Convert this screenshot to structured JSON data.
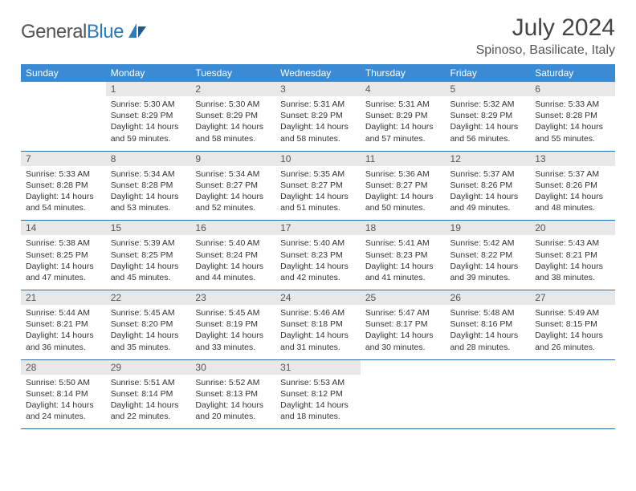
{
  "branding": {
    "logo_text_a": "General",
    "logo_text_b": "Blue",
    "logo_text_color": "#555555",
    "logo_accent_color": "#2b7bbf"
  },
  "header": {
    "title": "July 2024",
    "location": "Spinoso, Basilicate, Italy"
  },
  "colors": {
    "header_row_bg": "#3b8bd4",
    "header_row_text": "#ffffff",
    "daynum_bg": "#e8e8e8",
    "daynum_text": "#555555",
    "cell_border": "#2f6aa8",
    "body_text": "#333333",
    "page_bg": "#ffffff"
  },
  "fonts": {
    "title_size_pt": 30,
    "location_size_pt": 16,
    "weekday_size_pt": 12,
    "daynum_size_pt": 12,
    "cell_text_size_pt": 10.5
  },
  "calendar": {
    "type": "table",
    "columns": [
      "Sunday",
      "Monday",
      "Tuesday",
      "Wednesday",
      "Thursday",
      "Friday",
      "Saturday"
    ],
    "weeks": [
      [
        {
          "day": "",
          "sunrise": "",
          "sunset": "",
          "daylight": "",
          "empty": true
        },
        {
          "day": "1",
          "sunrise": "Sunrise: 5:30 AM",
          "sunset": "Sunset: 8:29 PM",
          "daylight": "Daylight: 14 hours and 59 minutes."
        },
        {
          "day": "2",
          "sunrise": "Sunrise: 5:30 AM",
          "sunset": "Sunset: 8:29 PM",
          "daylight": "Daylight: 14 hours and 58 minutes."
        },
        {
          "day": "3",
          "sunrise": "Sunrise: 5:31 AM",
          "sunset": "Sunset: 8:29 PM",
          "daylight": "Daylight: 14 hours and 58 minutes."
        },
        {
          "day": "4",
          "sunrise": "Sunrise: 5:31 AM",
          "sunset": "Sunset: 8:29 PM",
          "daylight": "Daylight: 14 hours and 57 minutes."
        },
        {
          "day": "5",
          "sunrise": "Sunrise: 5:32 AM",
          "sunset": "Sunset: 8:29 PM",
          "daylight": "Daylight: 14 hours and 56 minutes."
        },
        {
          "day": "6",
          "sunrise": "Sunrise: 5:33 AM",
          "sunset": "Sunset: 8:28 PM",
          "daylight": "Daylight: 14 hours and 55 minutes."
        }
      ],
      [
        {
          "day": "7",
          "sunrise": "Sunrise: 5:33 AM",
          "sunset": "Sunset: 8:28 PM",
          "daylight": "Daylight: 14 hours and 54 minutes."
        },
        {
          "day": "8",
          "sunrise": "Sunrise: 5:34 AM",
          "sunset": "Sunset: 8:28 PM",
          "daylight": "Daylight: 14 hours and 53 minutes."
        },
        {
          "day": "9",
          "sunrise": "Sunrise: 5:34 AM",
          "sunset": "Sunset: 8:27 PM",
          "daylight": "Daylight: 14 hours and 52 minutes."
        },
        {
          "day": "10",
          "sunrise": "Sunrise: 5:35 AM",
          "sunset": "Sunset: 8:27 PM",
          "daylight": "Daylight: 14 hours and 51 minutes."
        },
        {
          "day": "11",
          "sunrise": "Sunrise: 5:36 AM",
          "sunset": "Sunset: 8:27 PM",
          "daylight": "Daylight: 14 hours and 50 minutes."
        },
        {
          "day": "12",
          "sunrise": "Sunrise: 5:37 AM",
          "sunset": "Sunset: 8:26 PM",
          "daylight": "Daylight: 14 hours and 49 minutes."
        },
        {
          "day": "13",
          "sunrise": "Sunrise: 5:37 AM",
          "sunset": "Sunset: 8:26 PM",
          "daylight": "Daylight: 14 hours and 48 minutes."
        }
      ],
      [
        {
          "day": "14",
          "sunrise": "Sunrise: 5:38 AM",
          "sunset": "Sunset: 8:25 PM",
          "daylight": "Daylight: 14 hours and 47 minutes."
        },
        {
          "day": "15",
          "sunrise": "Sunrise: 5:39 AM",
          "sunset": "Sunset: 8:25 PM",
          "daylight": "Daylight: 14 hours and 45 minutes."
        },
        {
          "day": "16",
          "sunrise": "Sunrise: 5:40 AM",
          "sunset": "Sunset: 8:24 PM",
          "daylight": "Daylight: 14 hours and 44 minutes."
        },
        {
          "day": "17",
          "sunrise": "Sunrise: 5:40 AM",
          "sunset": "Sunset: 8:23 PM",
          "daylight": "Daylight: 14 hours and 42 minutes."
        },
        {
          "day": "18",
          "sunrise": "Sunrise: 5:41 AM",
          "sunset": "Sunset: 8:23 PM",
          "daylight": "Daylight: 14 hours and 41 minutes."
        },
        {
          "day": "19",
          "sunrise": "Sunrise: 5:42 AM",
          "sunset": "Sunset: 8:22 PM",
          "daylight": "Daylight: 14 hours and 39 minutes."
        },
        {
          "day": "20",
          "sunrise": "Sunrise: 5:43 AM",
          "sunset": "Sunset: 8:21 PM",
          "daylight": "Daylight: 14 hours and 38 minutes."
        }
      ],
      [
        {
          "day": "21",
          "sunrise": "Sunrise: 5:44 AM",
          "sunset": "Sunset: 8:21 PM",
          "daylight": "Daylight: 14 hours and 36 minutes."
        },
        {
          "day": "22",
          "sunrise": "Sunrise: 5:45 AM",
          "sunset": "Sunset: 8:20 PM",
          "daylight": "Daylight: 14 hours and 35 minutes."
        },
        {
          "day": "23",
          "sunrise": "Sunrise: 5:45 AM",
          "sunset": "Sunset: 8:19 PM",
          "daylight": "Daylight: 14 hours and 33 minutes."
        },
        {
          "day": "24",
          "sunrise": "Sunrise: 5:46 AM",
          "sunset": "Sunset: 8:18 PM",
          "daylight": "Daylight: 14 hours and 31 minutes."
        },
        {
          "day": "25",
          "sunrise": "Sunrise: 5:47 AM",
          "sunset": "Sunset: 8:17 PM",
          "daylight": "Daylight: 14 hours and 30 minutes."
        },
        {
          "day": "26",
          "sunrise": "Sunrise: 5:48 AM",
          "sunset": "Sunset: 8:16 PM",
          "daylight": "Daylight: 14 hours and 28 minutes."
        },
        {
          "day": "27",
          "sunrise": "Sunrise: 5:49 AM",
          "sunset": "Sunset: 8:15 PM",
          "daylight": "Daylight: 14 hours and 26 minutes."
        }
      ],
      [
        {
          "day": "28",
          "sunrise": "Sunrise: 5:50 AM",
          "sunset": "Sunset: 8:14 PM",
          "daylight": "Daylight: 14 hours and 24 minutes."
        },
        {
          "day": "29",
          "sunrise": "Sunrise: 5:51 AM",
          "sunset": "Sunset: 8:14 PM",
          "daylight": "Daylight: 14 hours and 22 minutes."
        },
        {
          "day": "30",
          "sunrise": "Sunrise: 5:52 AM",
          "sunset": "Sunset: 8:13 PM",
          "daylight": "Daylight: 14 hours and 20 minutes."
        },
        {
          "day": "31",
          "sunrise": "Sunrise: 5:53 AM",
          "sunset": "Sunset: 8:12 PM",
          "daylight": "Daylight: 14 hours and 18 minutes."
        },
        {
          "day": "",
          "sunrise": "",
          "sunset": "",
          "daylight": "",
          "empty": true
        },
        {
          "day": "",
          "sunrise": "",
          "sunset": "",
          "daylight": "",
          "empty": true
        },
        {
          "day": "",
          "sunrise": "",
          "sunset": "",
          "daylight": "",
          "empty": true
        }
      ]
    ]
  }
}
